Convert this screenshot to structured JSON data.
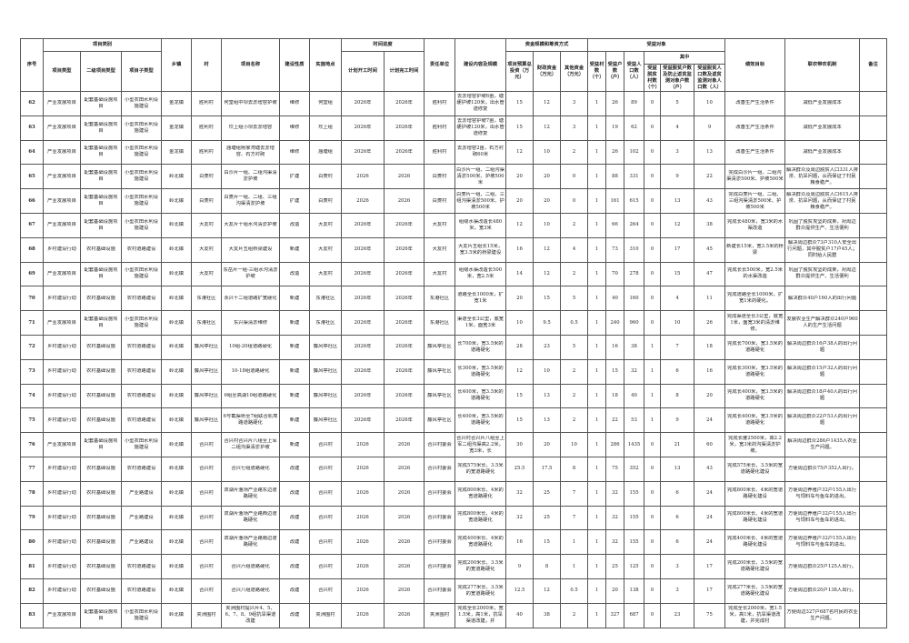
{
  "header": {
    "seq": "序号",
    "category": "项目类别",
    "type": "项目类型",
    "type2": "二级项目类型",
    "subtype": "项目子类型",
    "town": "乡镇",
    "village": "村",
    "name": "项目名称",
    "nature": "建设性质",
    "location": "实施地点",
    "schedule": "时间进度",
    "start": "计划开工时间",
    "end": "计划完工时间",
    "unit": "责任单位",
    "content": "建设内容及规模",
    "funds": "资金规模和筹资方式",
    "total": "项目预算总投资（万元）",
    "fiscal": "财政资金（万元）",
    "other": "其他资金（万元）",
    "beneficiary": "受益对象",
    "ben_villages": "受益村数（个）",
    "ben_households": "受益户数（户）",
    "ben_population": "受益人口数（人）",
    "among": "其中",
    "poor_villages": "受益脱贫村数（个）",
    "poor_households": "受益脱贫户数及防止返贫监测对象户数（户）",
    "poor_population": "受益脱贫人口数及返贫监测对象人口数（人）",
    "goal": "绩效目标",
    "mechanism": "联农带农机制",
    "remark": "备注"
  },
  "rows": [
    [
      "62",
      "产业发展项目",
      "配套基础设施项目",
      "小型农田水利设施建设",
      "金龙镇",
      "胜利村",
      "何堂组中坝去淤增容护坡",
      "维修",
      "何堂组",
      "2026年",
      "2026年",
      "胜利村",
      "去淤增容护坡6亩，塘埂护坡120米，出水管道修复",
      "15",
      "12",
      "3",
      "1",
      "26",
      "89",
      "0",
      "5",
      "10",
      "改善生产生活条件",
      "减低产业发展成本",
      ""
    ],
    [
      "63",
      "产业发展项目",
      "配套基础设施项目",
      "小型农田水利设施建设",
      "金龙镇",
      "胜利村",
      "坎上组小坝去淤增容",
      "维修",
      "坎上组",
      "2026年",
      "2026年",
      "胜利村",
      "去淤增容护坡7亩，塘埂护坡120米，出水管道修复",
      "15",
      "12",
      "3",
      "1",
      "19",
      "62",
      "0",
      "4",
      "9",
      "改善生产生活条件",
      "减低产业发展成本",
      ""
    ],
    [
      "64",
      "产业发展项目",
      "配套基础设施项目",
      "小型农田水利设施建设",
      "金龙镇",
      "胜利村",
      "庙塘组杨家湾塘去淤增容、石方衬砌",
      "维修",
      "庙塘组",
      "2026年",
      "2026年",
      "胜利村",
      "去淤增容2亩，石方衬砌60米",
      "12",
      "10",
      "2",
      "1",
      "26",
      "102",
      "0",
      "3",
      "13",
      "改善生产生活条件",
      "减低产业发展成本",
      ""
    ],
    [
      "65",
      "产业发展项目",
      "配套基础设施项目",
      "小型农田水利设施建设",
      "岭北镇",
      "白菱村",
      "白沙片一组、二组沟渠清淤护坡",
      "扩建",
      "白菱村",
      "2026",
      "2026",
      "白菱村",
      "白沙片一组、二组沟渠清淤500米、护坡500米",
      "20",
      "20",
      "0",
      "1",
      "88",
      "331",
      "0",
      "9",
      "22",
      "完成白沙片一组、二组沟渠清淤500米、护坡500米",
      "解决群众及周边脱贫人口331人排涝、抗旱问题，从而保证了村民粮食稳产。",
      ""
    ],
    [
      "66",
      "产业发展项目",
      "配套基础设施项目",
      "小型农田水利设施建设",
      "岭北镇",
      "白菱村",
      "白菱片一组、二组、三组沟渠清淤护坡",
      "扩建",
      "白菱村",
      "2026",
      "2026",
      "白菱村",
      "白菱片一组、二组、三组沟渠清淤500米、护坡500米",
      "20",
      "20",
      "0",
      "1",
      "161",
      "615",
      "0",
      "13",
      "43",
      "完成白菱片一组、二组、三组沟渠清淤500米、护坡500米",
      "解决群众及周边脱贫人口615人排涝、抗旱问题，从而保证了村民粮食稳产。",
      ""
    ],
    [
      "67",
      "产业发展项目",
      "配套基础设施项目",
      "小型农田水利设施建设",
      "岭北镇",
      "大友村",
      "大友片十组水沟清淤护坡",
      "改造",
      "大友村",
      "2026年",
      "2026年",
      "大友村",
      "组级水渠改造长480米，宽3米",
      "12",
      "10",
      "2",
      "1",
      "66",
      "264",
      "0",
      "12",
      "38",
      "完成长480米，宽3米的水渠改造",
      "巩固了脱贫攻坚的成果，对周边群众提供生产、生活便利",
      ""
    ],
    [
      "68",
      "乡村建设行动",
      "农村基础设施",
      "农村道路建设",
      "岭北镇",
      "大友村",
      "大友片五组桥梁建设",
      "新建",
      "大友村",
      "2026年",
      "2026年",
      "大友村",
      "大友片五组长15米，宽3.5米的桥梁建设",
      "16",
      "12",
      "4",
      "1",
      "73",
      "310",
      "0",
      "17",
      "45",
      "新建长15米，宽3.5米的桥梁",
      "解决周边群众73户310人安全出行问题，其中脱贫户17户45人；同时给人民群",
      ""
    ],
    [
      "69",
      "产业发展项目",
      "配套基础设施项目",
      "小型农田水利设施建设",
      "岭北镇",
      "大友村",
      "东岳片一组-三组水沟清淤护坡",
      "改造",
      "大友村",
      "2026年",
      "2026年",
      "大友村",
      "组级水渠改造长500米，宽2.5米",
      "14",
      "12",
      "2",
      "1",
      "70",
      "278",
      "0",
      "15",
      "47",
      "完成长长500米，宽2.5米的水渠改造",
      "巩固了脱贫攻坚的成果，对周边群众提供生产、生活便利",
      ""
    ],
    [
      "70",
      "乡村建设行动",
      "农村基础设施",
      "农村道路建设",
      "岭北镇",
      "东港社区",
      "永兴十二组道路扩宽硬化",
      "新建",
      "东港社区",
      "2026年",
      "2026年",
      "东港社区",
      "道路全长1000米，扩宽1米",
      "20",
      "15",
      "5",
      "1",
      "40",
      "160",
      "0",
      "4",
      "11",
      "完成道路全长1000米，扩宽1米的硬化。",
      "解决群众40户160人的出行问题",
      ""
    ],
    [
      "71",
      "产业发展项目",
      "配套基础设施项目",
      "小型农田水利设施建设",
      "岭北镇",
      "东港社区",
      "东兴渠清淤维修",
      "新建",
      "东港社区",
      "2026年",
      "2026年",
      "东港社区",
      "渠道全长3公里，底宽1米，面宽3米",
      "10",
      "9.5",
      "0.5",
      "1",
      "240",
      "960",
      "0",
      "10",
      "26",
      "完成渠道全长3公里，底宽1米，面宽3米的清淤维修。",
      "发展农业生产解决群众240户960人的生产生活问题",
      ""
    ],
    [
      "72",
      "乡村建设行动",
      "农村基础设施",
      "农村道路建设",
      "岭北镇",
      "藤风亭社区",
      "10组-20组道路硬化",
      "新建",
      "藤风亭社区",
      "2026年",
      "2026年",
      "藤风亭社区",
      "长700米，宽3.5米的道路硬化",
      "28",
      "23",
      "5",
      "1",
      "16",
      "38",
      "1",
      "7",
      "18",
      "完成长700米，宽3.5米的道路硬化",
      "解决周边群众16户38人的出行问题",
      ""
    ],
    [
      "73",
      "乡村建设行动",
      "农村基础设施",
      "农村道路建设",
      "岭北镇",
      "藤风亭社区",
      "10-18组道路硬化",
      "新建",
      "藤风亭社区",
      "2026年",
      "2026年",
      "藤风亭社区",
      "长300米，宽3.5米的道路硬化",
      "12",
      "10",
      "2",
      "1",
      "15",
      "32",
      "1",
      "6",
      "16",
      "完成长300米，宽3.5米的道路硬化",
      "解决周边群众15户32人的出行问题",
      ""
    ],
    [
      "74",
      "乡村建设行动",
      "农村基础设施",
      "农村道路建设",
      "岭北镇",
      "藤风亭社区",
      "6组至高湖10组道路硬化",
      "新建",
      "藤风亭社区",
      "2026年",
      "2026年",
      "藤风亭社区",
      "长400米，宽3.5米的道路硬化",
      "15",
      "13",
      "2",
      "1",
      "18",
      "40",
      "1",
      "8",
      "20",
      "完成长400米，宽3.5米的道路硬化",
      "解决周边群众18户40人的出行问题",
      ""
    ],
    [
      "75",
      "乡村建设行动",
      "农村基础设施",
      "农村道路建设",
      "岭北镇",
      "藤风亭社区",
      "6号截渠桥至7组联合机埠路道路硬化",
      "新建",
      "藤风亭社区",
      "2026年",
      "2026年",
      "藤风亭社区",
      "长400米，宽3.5米的道路硬化",
      "15",
      "13",
      "2",
      "1",
      "22",
      "53",
      "1",
      "9",
      "24",
      "完成长400米，宽3.5米的道路硬化",
      "解决周边群众22户53人的出行问题",
      ""
    ],
    [
      "76",
      "产业发展项目",
      "配套基础设施项目",
      "小型农田水利设施建设",
      "岭北镇",
      "合兴村",
      "合兴村合兴片八组至上军二组沟渠清淤护坡",
      "新建",
      "合兴村",
      "2026",
      "2026",
      "合兴村委会",
      "合兴村合兴片八组至上军二组沟渠高2.2米，宽3米，长",
      "30",
      "20",
      "10",
      "1",
      "286",
      "1435",
      "0",
      "21",
      "60",
      "完成长度2500米，高2.2米，宽3米的沟渠清淤护坡。",
      "解决周边群众286户1435人农业生产问题。",
      ""
    ],
    [
      "77",
      "乡村建设行动",
      "农村基础设施",
      "农村道路建设",
      "岭北镇",
      "合兴村",
      "合兴七组道路硬化",
      "改建",
      "合兴村",
      "2026",
      "2026",
      "合兴村委会",
      "完成575米长、3.5米的宽道路硬化",
      "25.5",
      "17.5",
      "8",
      "1",
      "75",
      "352",
      "0",
      "13",
      "43",
      "完成575米长、3.5米的宽道路硬化建设",
      "方便周边群众75户352人出行。",
      ""
    ],
    [
      "78",
      "乡村建设行动",
      "农村基础设施",
      "产业路建设",
      "岭北镇",
      "合兴村",
      "双湖片渔场产业路东边道路硬化",
      "改建",
      "合兴村",
      "2026",
      "2026",
      "合兴村委会",
      "完成800米长、4米的宽道路硬化",
      "32",
      "25",
      "7",
      "1",
      "32",
      "155",
      "0",
      "6",
      "24",
      "完成800米长、4米的宽道路硬化建设",
      "方便周边养殖户32户155人出行与饲料车与鱼车的进出。",
      ""
    ],
    [
      "79",
      "乡村建设行动",
      "农村基础设施",
      "产业路建设",
      "岭北镇",
      "合兴村",
      "双湖片渔场产业路西边道路硬化",
      "改建",
      "合兴村",
      "2026",
      "2026",
      "合兴村委会",
      "完成800米长、4米的宽道路硬化",
      "32",
      "25",
      "7",
      "1",
      "32",
      "155",
      "0",
      "6",
      "24",
      "完成800米长、4米的宽道路硬化建设",
      "方便周边养殖户32户155人出行与饲料车与鱼车的进出。",
      ""
    ],
    [
      "80",
      "乡村建设行动",
      "农村基础设施",
      "产业路建设",
      "岭北镇",
      "合兴村",
      "双湖片渔场产业路南边道路硬化",
      "改建",
      "合兴村",
      "2026",
      "2026",
      "合兴村委会",
      "完成400米长、4米的宽道路硬化",
      "16",
      "15",
      "1",
      "1",
      "32",
      "155",
      "0",
      "6",
      "24",
      "完成400米长、4米的宽道路硬化建设",
      "方便周边养殖户32户155人出行与饲料车与鱼车的进出。",
      ""
    ],
    [
      "81",
      "乡村建设行动",
      "农村基础设施",
      "农村道路建设",
      "岭北镇",
      "合兴村",
      "合兴六组道路硬化",
      "改建",
      "合兴村",
      "2026",
      "2026",
      "合兴村委会",
      "完成200米长、3.5米的宽道路硬化",
      "9",
      "8",
      "1",
      "1",
      "25",
      "125",
      "0",
      "3",
      "17",
      "完成200米长、3.5米的宽道路硬化建设",
      "方便周边群众25户125人出行。",
      ""
    ],
    [
      "82",
      "乡村建设行动",
      "农村基础设施",
      "农村道路建设",
      "岭北镇",
      "合兴村",
      "合兴八组道路硬化",
      "改建",
      "合兴村",
      "2026",
      "2026",
      "合兴村委会",
      "完成277米长、3.5米的宽道路硬化",
      "12.5",
      "12",
      "0.5",
      "1",
      "20",
      "138",
      "0",
      "3",
      "17",
      "完成277米长、3.5米的宽道路硬化建设",
      "方便周边群众20户138人出行。",
      ""
    ],
    [
      "83",
      "产业发展项目",
      "配套基础设施项目",
      "小型农田水利设施建设",
      "岭北镇",
      "夹洲围村",
      "夹洲围村提兴片4、5、6、7、8、9组抗旱渠道改建",
      "改建",
      "夹洲围村",
      "2026",
      "2026",
      "夹洲围村",
      "完成全长2000米，宽1.5米，高1米，抗旱渠道改建，并",
      "40",
      "38",
      "2",
      "1",
      "327",
      "687",
      "0",
      "23",
      "75",
      "完成全长2000米，宽1.5米，高1米，抗旱渠道改建，并完成村",
      "方便周边327户687名村民的农业生产问题。",
      ""
    ]
  ]
}
